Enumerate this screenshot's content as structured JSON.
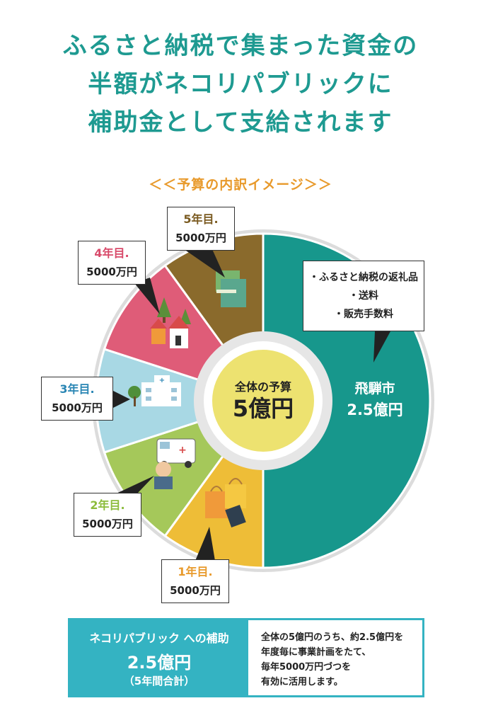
{
  "headline": {
    "line1": "ふるさと納税で集まった資金の",
    "line2": "半額がネコリパブリックに",
    "line3": "補助金として支給されます"
  },
  "subtitle": "＜＜予算の内訳イメージ＞＞",
  "center": {
    "label": "全体の予算",
    "value": "5億円"
  },
  "hida": {
    "name": "飛騨市",
    "amount": "2.5億円",
    "notes": [
      "・ふるさと納税の返礼品",
      "・送料",
      "・販売手数料"
    ]
  },
  "colors": {
    "heading": "#1e9a91",
    "subtitle": "#e89a2c",
    "hida": "#17978c",
    "year1": "#eebd37",
    "year2": "#a5c85a",
    "year3": "#a8d8e4",
    "year4": "#df5c78",
    "year5": "#8a6a2c",
    "center": "#ede270",
    "panel": "#34b3c2"
  },
  "chart_data": {
    "type": "pie",
    "unit": "万円",
    "slices": [
      {
        "label": "飛騨市",
        "value": 25000,
        "color": "#17978c",
        "text": "2.5億円"
      },
      {
        "label": "1年目.",
        "value": 5000,
        "color": "#eebd37",
        "text": "5000万円",
        "label_color": "#e89a2c"
      },
      {
        "label": "2年目.",
        "value": 5000,
        "color": "#a5c85a",
        "text": "5000万円",
        "label_color": "#8cbc3c"
      },
      {
        "label": "3年目.",
        "value": 5000,
        "color": "#a8d8e4",
        "text": "5000万円",
        "label_color": "#2a86b4"
      },
      {
        "label": "4年目.",
        "value": 5000,
        "color": "#df5c78",
        "text": "5000万円",
        "label_color": "#d84a6a"
      },
      {
        "label": "5年目.",
        "value": 5000,
        "color": "#8a6a2c",
        "text": "5000万円",
        "label_color": "#7a5a20"
      }
    ]
  },
  "bottom": {
    "title": "ネコリパブリック への補助",
    "amount": "2.5億円",
    "note": "（5年間合計）",
    "desc": [
      "全体の5億円のうち、約2.5億円を",
      "年度毎に事業計画をたて、",
      "毎年5000万円づつを",
      "有効に活用します。"
    ]
  }
}
